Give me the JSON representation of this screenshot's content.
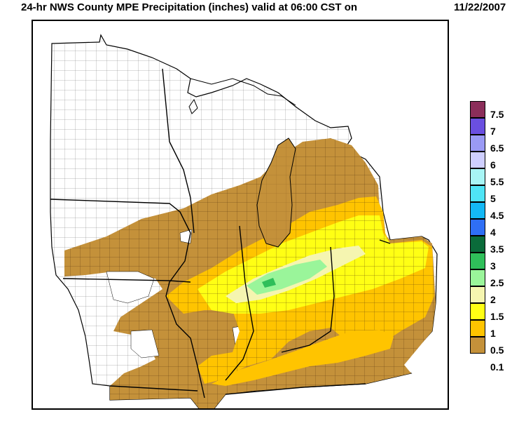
{
  "title": "24-hr NWS County MPE Precipitation (inches) valid at 06:00 CST on",
  "valid_date": "11/22/2007",
  "legend": {
    "items": [
      {
        "label": "7.5",
        "color": "#8b2e5a"
      },
      {
        "label": "7",
        "color": "#6a4fe0"
      },
      {
        "label": "6.5",
        "color": "#9a9af5"
      },
      {
        "label": "6",
        "color": "#cfcfff"
      },
      {
        "label": "5.5",
        "color": "#a8f5f5"
      },
      {
        "label": "5",
        "color": "#4fe4f5"
      },
      {
        "label": "4.5",
        "color": "#14b8f5"
      },
      {
        "label": "4",
        "color": "#2f6ff5"
      },
      {
        "label": "3.5",
        "color": "#0a6b3a"
      },
      {
        "label": "3",
        "color": "#2fbf5a"
      },
      {
        "label": "2.5",
        "color": "#9af59a"
      },
      {
        "label": "2",
        "color": "#f5f5b0"
      },
      {
        "label": "1.5",
        "color": "#ffff14"
      },
      {
        "label": "1",
        "color": "#ffc400"
      },
      {
        "label": "0.5",
        "color": "#c4913a"
      }
    ],
    "bottom_label": "0.1"
  }
}
